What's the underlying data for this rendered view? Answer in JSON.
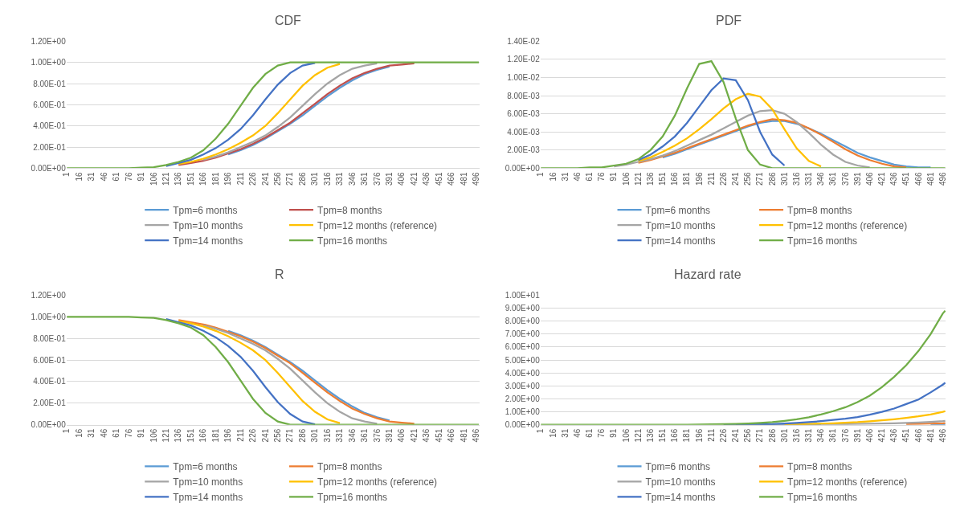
{
  "chart_data": [
    {
      "type": "line",
      "title": "CDF",
      "grid": "y",
      "legend": "bottom",
      "x": [
        1,
        16,
        31,
        46,
        61,
        76,
        91,
        106,
        121,
        136,
        151,
        166,
        181,
        196,
        211,
        226,
        241,
        256,
        271,
        286,
        301,
        316,
        331,
        346,
        361,
        376,
        391,
        406,
        421,
        436,
        451,
        466,
        481,
        496,
        499
      ],
      "xlim": [
        0.5,
        499.5
      ],
      "xticks": [
        1,
        16,
        31,
        46,
        61,
        76,
        91,
        106,
        121,
        136,
        151,
        166,
        181,
        196,
        211,
        226,
        241,
        256,
        271,
        286,
        301,
        316,
        331,
        346,
        361,
        376,
        391,
        406,
        421,
        436,
        451,
        466,
        481,
        496
      ],
      "ylim": [
        0,
        1.2
      ],
      "yticks": [
        {
          "value": 0,
          "label": "0.00E+00"
        },
        {
          "value": 0.2,
          "label": "2.00E-01"
        },
        {
          "value": 0.4,
          "label": "4.00E-01"
        },
        {
          "value": 0.6,
          "label": "6.00E-01"
        },
        {
          "value": 0.8,
          "label": "8.00E-01"
        },
        {
          "value": 1.0,
          "label": "1.00E+00"
        },
        {
          "value": 1.2,
          "label": "1.20E+00"
        }
      ],
      "series": [
        {
          "name": "Tpm=6 months",
          "color": "#5b9bd5",
          "values": [
            null,
            null,
            null,
            null,
            null,
            null,
            null,
            null,
            null,
            null,
            null,
            null,
            null,
            0.13,
            0.17,
            0.22,
            0.28,
            0.35,
            0.42,
            0.5,
            0.59,
            0.68,
            0.76,
            0.83,
            0.89,
            0.93,
            0.96,
            null,
            null,
            null,
            null,
            null,
            null,
            null,
            null
          ]
        },
        {
          "name": "Tpm=8 months",
          "color": "#c0504d",
          "values": [
            null,
            null,
            null,
            null,
            null,
            null,
            null,
            null,
            null,
            0.03,
            0.05,
            0.07,
            0.1,
            0.14,
            0.18,
            0.23,
            0.29,
            0.36,
            0.43,
            0.52,
            0.61,
            0.7,
            0.78,
            0.85,
            0.9,
            0.94,
            0.97,
            0.98,
            0.99,
            null,
            null,
            null,
            null,
            null,
            null
          ]
        },
        {
          "name": "Tpm=10 months",
          "color": "#a5a5a5",
          "values": [
            null,
            null,
            null,
            null,
            null,
            null,
            null,
            null,
            null,
            null,
            null,
            0.08,
            0.11,
            0.15,
            0.2,
            0.25,
            0.31,
            0.39,
            0.48,
            0.59,
            0.7,
            0.8,
            0.88,
            0.94,
            0.97,
            0.99,
            null,
            null,
            null,
            null,
            null,
            null,
            null,
            null,
            null
          ]
        },
        {
          "name": "Tpm=12 months (reference)",
          "color": "#ffc000",
          "values": [
            null,
            null,
            null,
            null,
            null,
            null,
            null,
            null,
            null,
            0.04,
            0.06,
            0.09,
            0.13,
            0.18,
            0.24,
            0.31,
            0.4,
            0.52,
            0.65,
            0.78,
            0.88,
            0.95,
            0.985,
            null,
            null,
            null,
            null,
            null,
            null,
            null,
            null,
            null,
            null,
            null,
            null
          ]
        },
        {
          "name": "Tpm=14 months",
          "color": "#4472c4",
          "values": [
            null,
            null,
            null,
            null,
            null,
            null,
            null,
            null,
            0.02,
            0.05,
            0.08,
            0.13,
            0.19,
            0.27,
            0.37,
            0.5,
            0.65,
            0.79,
            0.9,
            0.97,
            0.995,
            null,
            null,
            null,
            null,
            null,
            null,
            null,
            null,
            null,
            null,
            null,
            null,
            null,
            null
          ]
        },
        {
          "name": "Tpm=16 months",
          "color": "#70ad47",
          "values": [
            0,
            0,
            0,
            0,
            0,
            0,
            0.005,
            0.01,
            0.03,
            0.06,
            0.1,
            0.17,
            0.28,
            0.42,
            0.59,
            0.76,
            0.89,
            0.97,
            1,
            1,
            1,
            1,
            1,
            1,
            1,
            1,
            1,
            1,
            1,
            1,
            1,
            1,
            1,
            1,
            1
          ]
        }
      ]
    },
    {
      "type": "line",
      "title": "PDF",
      "grid": "y",
      "legend": "bottom",
      "x": [
        1,
        16,
        31,
        46,
        61,
        76,
        91,
        106,
        121,
        136,
        151,
        166,
        181,
        196,
        211,
        226,
        241,
        256,
        271,
        286,
        301,
        316,
        331,
        346,
        361,
        376,
        391,
        406,
        421,
        436,
        451,
        466,
        481,
        496,
        499
      ],
      "xlim": [
        0.5,
        499.5
      ],
      "xticks": [
        1,
        16,
        31,
        46,
        61,
        76,
        91,
        106,
        121,
        136,
        151,
        166,
        181,
        196,
        211,
        226,
        241,
        256,
        271,
        286,
        301,
        316,
        331,
        346,
        361,
        376,
        391,
        406,
        421,
        436,
        451,
        466,
        481,
        496
      ],
      "ylim": [
        0,
        0.014
      ],
      "yticks": [
        {
          "value": 0,
          "label": "0.00E+00"
        },
        {
          "value": 0.002,
          "label": "2.00E-03"
        },
        {
          "value": 0.004,
          "label": "4.00E-03"
        },
        {
          "value": 0.006,
          "label": "6.00E-03"
        },
        {
          "value": 0.008,
          "label": "8.00E-03"
        },
        {
          "value": 0.01,
          "label": "1.00E-02"
        },
        {
          "value": 0.012,
          "label": "1.20E-02"
        },
        {
          "value": 0.014,
          "label": "1.40E-02"
        }
      ],
      "series": [
        {
          "name": "Tpm=6 months",
          "color": "#5b9bd5",
          "values": [
            null,
            null,
            null,
            null,
            null,
            null,
            null,
            null,
            null,
            null,
            0.0012,
            0.0016,
            0.0021,
            0.0026,
            0.0031,
            0.0036,
            0.0041,
            0.0046,
            0.005,
            0.0052,
            0.0052,
            0.0049,
            0.0044,
            0.0038,
            0.0031,
            0.0024,
            0.0017,
            0.0012,
            0.0008,
            0.0004,
            0.0002,
            0.0001,
            0.0001,
            null,
            null
          ]
        },
        {
          "name": "Tpm=8 months",
          "color": "#ed7d31",
          "values": [
            null,
            null,
            null,
            null,
            null,
            null,
            null,
            null,
            0.0006,
            0.0009,
            0.0013,
            0.0017,
            0.0022,
            0.0027,
            0.0032,
            0.0037,
            0.0042,
            0.0047,
            0.0051,
            0.0054,
            0.0053,
            0.005,
            0.0044,
            0.0037,
            0.0029,
            0.0021,
            0.0014,
            0.0009,
            0.0005,
            0.0002,
            0.0001,
            null,
            null,
            null,
            null
          ]
        },
        {
          "name": "Tpm=10 months",
          "color": "#a5a5a5",
          "values": [
            null,
            null,
            null,
            null,
            null,
            null,
            0.0002,
            0.0004,
            0.0007,
            0.001,
            0.0014,
            0.0019,
            0.0025,
            0.0031,
            0.0037,
            0.0044,
            0.0051,
            0.0058,
            0.0063,
            0.0064,
            0.006,
            0.0051,
            0.0039,
            0.0026,
            0.0015,
            0.0007,
            0.0003,
            0.0001,
            null,
            null,
            null,
            null,
            null,
            null,
            null
          ]
        },
        {
          "name": "Tpm=12 months (reference)",
          "color": "#ffc000",
          "values": [
            null,
            null,
            null,
            null,
            null,
            null,
            null,
            null,
            0.0008,
            0.0012,
            0.0018,
            0.0025,
            0.0033,
            0.0043,
            0.0054,
            0.0066,
            0.0076,
            0.0082,
            0.0079,
            0.0065,
            0.0043,
            0.0022,
            0.0008,
            0.0002,
            null,
            null,
            null,
            null,
            null,
            null,
            null,
            null,
            null,
            null,
            null
          ]
        },
        {
          "name": "Tpm=14 months",
          "color": "#4472c4",
          "values": [
            null,
            null,
            null,
            null,
            null,
            null,
            null,
            null,
            0.0009,
            0.0015,
            0.0024,
            0.0035,
            0.005,
            0.0068,
            0.0086,
            0.0099,
            0.0097,
            0.0075,
            0.004,
            0.0015,
            0.0003,
            null,
            null,
            null,
            null,
            null,
            null,
            null,
            null,
            null,
            null,
            null,
            null,
            null,
            null
          ]
        },
        {
          "name": "Tpm=16 months",
          "color": "#70ad47",
          "values": [
            0,
            0,
            0,
            0,
            0.0001,
            0.0001,
            0.0003,
            0.0005,
            0.001,
            0.002,
            0.0035,
            0.0058,
            0.0088,
            0.0115,
            0.0118,
            0.0095,
            0.0055,
            0.002,
            0.0004,
            0,
            0,
            0,
            0,
            0,
            0,
            0,
            0,
            0,
            0,
            0,
            0,
            0,
            0,
            0,
            0
          ]
        }
      ]
    },
    {
      "type": "line",
      "title": "R",
      "grid": "y",
      "legend": "bottom",
      "x": [
        1,
        16,
        31,
        46,
        61,
        76,
        91,
        106,
        121,
        136,
        151,
        166,
        181,
        196,
        211,
        226,
        241,
        256,
        271,
        286,
        301,
        316,
        331,
        346,
        361,
        376,
        391,
        406,
        421,
        436,
        451,
        466,
        481,
        496,
        499
      ],
      "xlim": [
        0.5,
        499.5
      ],
      "xticks": [
        1,
        16,
        31,
        46,
        61,
        76,
        91,
        106,
        121,
        136,
        151,
        166,
        181,
        196,
        211,
        226,
        241,
        256,
        271,
        286,
        301,
        316,
        331,
        346,
        361,
        376,
        391,
        406,
        421,
        436,
        451,
        466,
        481,
        496
      ],
      "ylim": [
        0,
        1.2
      ],
      "yticks": [
        {
          "value": 0,
          "label": "0.00E+00"
        },
        {
          "value": 0.2,
          "label": "2.00E-01"
        },
        {
          "value": 0.4,
          "label": "4.00E-01"
        },
        {
          "value": 0.6,
          "label": "6.00E-01"
        },
        {
          "value": 0.8,
          "label": "8.00E-01"
        },
        {
          "value": 1.0,
          "label": "1.00E+00"
        },
        {
          "value": 1.2,
          "label": "1.20E+00"
        }
      ],
      "series": [
        {
          "name": "Tpm=6 months",
          "color": "#5b9bd5",
          "values": [
            null,
            null,
            null,
            null,
            null,
            null,
            null,
            null,
            null,
            null,
            null,
            null,
            null,
            0.87,
            0.83,
            0.78,
            0.72,
            0.65,
            0.58,
            0.5,
            0.41,
            0.32,
            0.24,
            0.17,
            0.11,
            0.07,
            0.04,
            null,
            null,
            null,
            null,
            null,
            null,
            null,
            null
          ]
        },
        {
          "name": "Tpm=8 months",
          "color": "#ed7d31",
          "values": [
            null,
            null,
            null,
            null,
            null,
            null,
            null,
            null,
            null,
            0.97,
            0.95,
            0.93,
            0.9,
            0.86,
            0.82,
            0.77,
            0.71,
            0.64,
            0.57,
            0.48,
            0.39,
            0.3,
            0.22,
            0.15,
            0.1,
            0.06,
            0.03,
            0.02,
            0.01,
            null,
            null,
            null,
            null,
            null,
            null
          ]
        },
        {
          "name": "Tpm=10 months",
          "color": "#a5a5a5",
          "values": [
            null,
            null,
            null,
            null,
            null,
            null,
            null,
            null,
            null,
            null,
            null,
            0.92,
            0.89,
            0.85,
            0.8,
            0.75,
            0.69,
            0.61,
            0.52,
            0.41,
            0.3,
            0.2,
            0.12,
            0.06,
            0.03,
            0.01,
            null,
            null,
            null,
            null,
            null,
            null,
            null,
            null,
            null
          ]
        },
        {
          "name": "Tpm=12 months (reference)",
          "color": "#ffc000",
          "values": [
            null,
            null,
            null,
            null,
            null,
            null,
            null,
            null,
            null,
            0.96,
            0.94,
            0.91,
            0.87,
            0.82,
            0.76,
            0.69,
            0.6,
            0.48,
            0.35,
            0.22,
            0.12,
            0.05,
            0.015,
            null,
            null,
            null,
            null,
            null,
            null,
            null,
            null,
            null,
            null,
            null,
            null
          ]
        },
        {
          "name": "Tpm=14 months",
          "color": "#4472c4",
          "values": [
            null,
            null,
            null,
            null,
            null,
            null,
            null,
            null,
            0.98,
            0.95,
            0.92,
            0.87,
            0.81,
            0.73,
            0.63,
            0.5,
            0.35,
            0.21,
            0.1,
            0.03,
            0.005,
            null,
            null,
            null,
            null,
            null,
            null,
            null,
            null,
            null,
            null,
            null,
            null,
            null,
            null
          ]
        },
        {
          "name": "Tpm=16 months",
          "color": "#70ad47",
          "values": [
            1,
            1,
            1,
            1,
            1,
            1,
            0.995,
            0.99,
            0.97,
            0.94,
            0.9,
            0.83,
            0.72,
            0.58,
            0.41,
            0.24,
            0.11,
            0.03,
            0,
            0,
            0,
            0,
            0,
            0,
            0,
            0,
            0,
            0,
            0,
            0,
            0,
            0,
            0,
            0,
            0
          ]
        }
      ]
    },
    {
      "type": "line",
      "title": "Hazard rate",
      "grid": "y",
      "legend": "bottom",
      "x": [
        1,
        16,
        31,
        46,
        61,
        76,
        91,
        106,
        121,
        136,
        151,
        166,
        181,
        196,
        211,
        226,
        241,
        256,
        271,
        286,
        301,
        316,
        331,
        346,
        361,
        376,
        391,
        406,
        421,
        436,
        451,
        466,
        481,
        496,
        499
      ],
      "xlim": [
        0.5,
        499.5
      ],
      "xticks": [
        1,
        16,
        31,
        46,
        61,
        76,
        91,
        106,
        121,
        136,
        151,
        166,
        181,
        196,
        211,
        226,
        241,
        256,
        271,
        286,
        301,
        316,
        331,
        346,
        361,
        376,
        391,
        406,
        421,
        436,
        451,
        466,
        481,
        496
      ],
      "ylim": [
        0,
        10
      ],
      "yticks": [
        {
          "value": 0,
          "label": "0.00E+00"
        },
        {
          "value": 1,
          "label": "1.00E+00"
        },
        {
          "value": 2,
          "label": "2.00E+00"
        },
        {
          "value": 3,
          "label": "3.00E+00"
        },
        {
          "value": 4,
          "label": "4.00E+00"
        },
        {
          "value": 5,
          "label": "5.00E+00"
        },
        {
          "value": 6,
          "label": "6.00E+00"
        },
        {
          "value": 7,
          "label": "7.00E+00"
        },
        {
          "value": 8,
          "label": "8.00E+00"
        },
        {
          "value": 9,
          "label": "9.00E+00"
        },
        {
          "value": 10,
          "label": "1.00E+01"
        }
      ],
      "series": [
        {
          "name": "Tpm=6 months",
          "color": "#5b9bd5",
          "values": [
            null,
            null,
            null,
            null,
            null,
            null,
            null,
            null,
            null,
            null,
            null,
            null,
            null,
            null,
            null,
            null,
            null,
            null,
            0,
            0,
            0,
            0,
            0,
            0,
            null,
            null,
            null,
            null,
            null,
            null,
            null,
            null,
            0.03,
            0.03,
            0.03
          ]
        },
        {
          "name": "Tpm=8 months",
          "color": "#ed7d31",
          "values": [
            null,
            null,
            null,
            null,
            null,
            null,
            null,
            null,
            null,
            null,
            null,
            null,
            null,
            null,
            null,
            null,
            null,
            null,
            null,
            null,
            null,
            null,
            null,
            null,
            null,
            null,
            null,
            null,
            null,
            null,
            0.05,
            0.06,
            0.09,
            0.12,
            0.13
          ]
        },
        {
          "name": "Tpm=10 months",
          "color": "#a5a5a5",
          "values": [
            null,
            null,
            null,
            null,
            null,
            null,
            null,
            null,
            null,
            null,
            null,
            null,
            null,
            null,
            null,
            null,
            0,
            0,
            0,
            0,
            0.01,
            0.02,
            0.02,
            0.03,
            0.04,
            0.05,
            0.06,
            0.08,
            0.1,
            0.12,
            0.15,
            0.18,
            0.22,
            0.28,
            0.3
          ]
        },
        {
          "name": "Tpm=12 months (reference)",
          "color": "#ffc000",
          "values": [
            null,
            null,
            null,
            null,
            null,
            null,
            null,
            null,
            null,
            null,
            null,
            null,
            null,
            null,
            null,
            null,
            null,
            null,
            null,
            null,
            0.02,
            0.04,
            0.06,
            0.09,
            0.12,
            0.16,
            0.2,
            0.27,
            0.35,
            0.43,
            0.53,
            0.65,
            0.8,
            1,
            1.05
          ]
        },
        {
          "name": "Tpm=14 months",
          "color": "#4472c4",
          "values": [
            null,
            null,
            null,
            null,
            null,
            null,
            null,
            null,
            null,
            null,
            null,
            null,
            null,
            null,
            null,
            0,
            0.01,
            0.02,
            0.03,
            0.05,
            0.1,
            0.14,
            0.2,
            0.28,
            0.37,
            0.47,
            0.6,
            0.78,
            1,
            1.25,
            1.6,
            1.95,
            2.5,
            3.1,
            3.25
          ]
        },
        {
          "name": "Tpm=16 months",
          "color": "#70ad47",
          "values": [
            0,
            0,
            0,
            0,
            0,
            0,
            0,
            0,
            0,
            0,
            0,
            0,
            0,
            0.02,
            0.03,
            0.05,
            0.07,
            0.1,
            0.15,
            0.2,
            0.3,
            0.42,
            0.58,
            0.8,
            1.05,
            1.35,
            1.75,
            2.25,
            2.9,
            3.7,
            4.6,
            5.7,
            7,
            8.6,
            8.8
          ]
        }
      ]
    }
  ]
}
